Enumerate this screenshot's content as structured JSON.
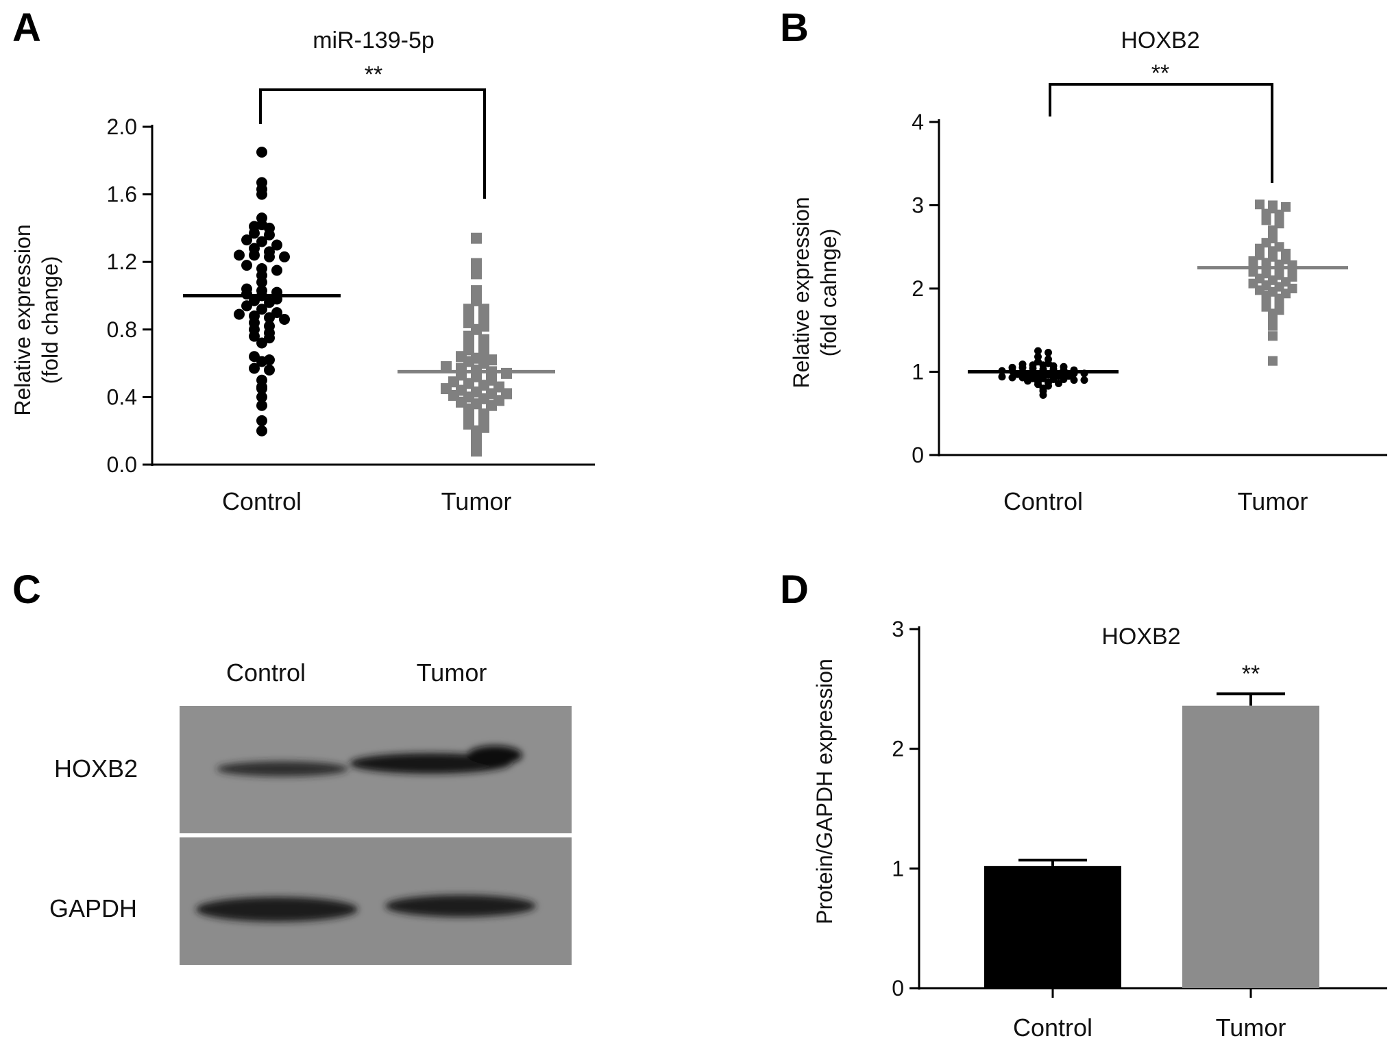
{
  "panels": {
    "a": {
      "letter": "A",
      "title": "miR-139-5p",
      "significance": "**",
      "ylabel_line1": "Relative expression",
      "ylabel_line2": "(fold change)",
      "yticks": [
        "0.0",
        "0.4",
        "0.8",
        "1.2",
        "1.6",
        "2.0"
      ],
      "categories": [
        "Control",
        "Tumor"
      ]
    },
    "b": {
      "letter": "B",
      "title": "HOXB2",
      "significance": "**",
      "ylabel_line1": "Relative expression",
      "ylabel_line2": "(fold cahnge)",
      "yticks": [
        "0",
        "1",
        "2",
        "3",
        "4"
      ],
      "categories": [
        "Control",
        "Tumor"
      ]
    },
    "c": {
      "letter": "C",
      "lanes": [
        "Control",
        "Tumor"
      ],
      "rows": [
        "HOXB2",
        "GAPDH"
      ]
    },
    "d": {
      "letter": "D",
      "title": "HOXB2",
      "significance": "**",
      "ylabel": "Protein/GAPDH expression",
      "yticks": [
        "0",
        "1",
        "2",
        "3"
      ],
      "categories": [
        "Control",
        "Tumor"
      ]
    }
  },
  "chart_data": [
    {
      "panel": "A",
      "type": "scatter",
      "title": "miR-139-5p",
      "ylabel": "Relative expression\n(fold change)",
      "ylim": [
        0.0,
        2.0
      ],
      "categories": [
        "Control",
        "Tumor"
      ],
      "significance": "**",
      "series": [
        {
          "category": "Control",
          "marker": "circle",
          "color": "#000000",
          "mean": 1.0,
          "values": [
            1.85,
            1.67,
            1.63,
            1.6,
            1.46,
            1.42,
            1.41,
            1.4,
            1.37,
            1.36,
            1.33,
            1.32,
            1.3,
            1.28,
            1.26,
            1.24,
            1.24,
            1.23,
            1.23,
            1.18,
            1.16,
            1.15,
            1.12,
            1.08,
            1.04,
            1.03,
            1.02,
            1.01,
            1.0,
            0.98,
            0.97,
            0.96,
            0.94,
            0.92,
            0.9,
            0.89,
            0.88,
            0.87,
            0.86,
            0.84,
            0.82,
            0.8,
            0.78,
            0.76,
            0.75,
            0.72,
            0.64,
            0.62,
            0.61,
            0.57,
            0.56,
            0.5,
            0.46,
            0.45,
            0.4,
            0.35,
            0.26,
            0.2
          ]
        },
        {
          "category": "Tumor",
          "marker": "square",
          "color": "#808080",
          "mean": 0.55,
          "values": [
            1.34,
            1.19,
            1.17,
            1.13,
            1.03,
            0.97,
            0.92,
            0.92,
            0.89,
            0.88,
            0.84,
            0.82,
            0.8,
            0.76,
            0.74,
            0.73,
            0.71,
            0.68,
            0.66,
            0.64,
            0.63,
            0.62,
            0.61,
            0.6,
            0.58,
            0.57,
            0.56,
            0.55,
            0.54,
            0.53,
            0.52,
            0.5,
            0.49,
            0.48,
            0.47,
            0.46,
            0.45,
            0.44,
            0.43,
            0.42,
            0.42,
            0.41,
            0.4,
            0.39,
            0.38,
            0.37,
            0.36,
            0.35,
            0.33,
            0.3,
            0.28,
            0.26,
            0.24,
            0.22,
            0.2,
            0.17,
            0.12,
            0.08
          ]
        }
      ]
    },
    {
      "panel": "B",
      "type": "scatter",
      "title": "HOXB2",
      "ylabel": "Relative expression\n(fold cahnge)",
      "ylim": [
        0,
        4
      ],
      "categories": [
        "Control",
        "Tumor"
      ],
      "significance": "**",
      "series": [
        {
          "category": "Control",
          "marker": "circle",
          "color": "#000000",
          "mean": 1.0,
          "values": [
            1.25,
            1.23,
            1.18,
            1.15,
            1.12,
            1.1,
            1.09,
            1.08,
            1.08,
            1.07,
            1.06,
            1.05,
            1.05,
            1.04,
            1.03,
            1.03,
            1.02,
            1.02,
            1.01,
            1.01,
            1.0,
            1.0,
            1.0,
            0.99,
            0.99,
            0.98,
            0.98,
            0.97,
            0.97,
            0.96,
            0.96,
            0.95,
            0.95,
            0.94,
            0.93,
            0.93,
            0.92,
            0.92,
            0.91,
            0.91,
            0.9,
            0.9,
            0.89,
            0.88,
            0.87,
            0.86,
            0.85,
            0.83,
            0.8,
            0.77,
            0.72
          ]
        },
        {
          "category": "Tumor",
          "marker": "square",
          "color": "#808080",
          "mean": 2.25,
          "values": [
            3.01,
            3.0,
            2.98,
            2.96,
            2.9,
            2.89,
            2.82,
            2.78,
            2.7,
            2.63,
            2.6,
            2.55,
            2.5,
            2.48,
            2.45,
            2.42,
            2.4,
            2.38,
            2.35,
            2.33,
            2.31,
            2.29,
            2.28,
            2.26,
            2.25,
            2.23,
            2.21,
            2.2,
            2.18,
            2.16,
            2.14,
            2.12,
            2.1,
            2.08,
            2.06,
            2.04,
            2.02,
            2.0,
            1.98,
            1.96,
            1.94,
            1.92,
            1.88,
            1.85,
            1.82,
            1.78,
            1.74,
            1.7,
            1.63,
            1.55,
            1.43,
            1.13
          ]
        }
      ]
    },
    {
      "panel": "D",
      "type": "bar",
      "title": "HOXB2",
      "ylabel": "Protein/GAPDH expression",
      "ylim": [
        0,
        3
      ],
      "categories": [
        "Control",
        "Tumor"
      ],
      "values": [
        1.02,
        2.36
      ],
      "errors": [
        0.05,
        0.1
      ],
      "colors": [
        "#000000",
        "#8c8c8c"
      ],
      "significance": [
        "",
        "**"
      ]
    }
  ],
  "blot": {
    "lanes": [
      "Control",
      "Tumor"
    ],
    "bands": {
      "HOXB2": [
        0.55,
        1.0
      ],
      "GAPDH": [
        1.0,
        0.85
      ]
    }
  }
}
